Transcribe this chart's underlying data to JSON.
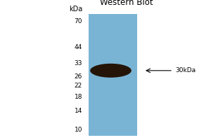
{
  "title": "Western Blot",
  "background_color": "#ffffff",
  "lane_color": "#7ab4d4",
  "band_color": "#251508",
  "mw_markers": [
    70,
    44,
    33,
    26,
    22,
    18,
    14,
    10
  ],
  "annotation_text": "≠30kDa",
  "annotation_label": "30kDa",
  "kda_label": "kDa",
  "fig_width": 3.0,
  "fig_height": 2.0,
  "dpi": 100
}
